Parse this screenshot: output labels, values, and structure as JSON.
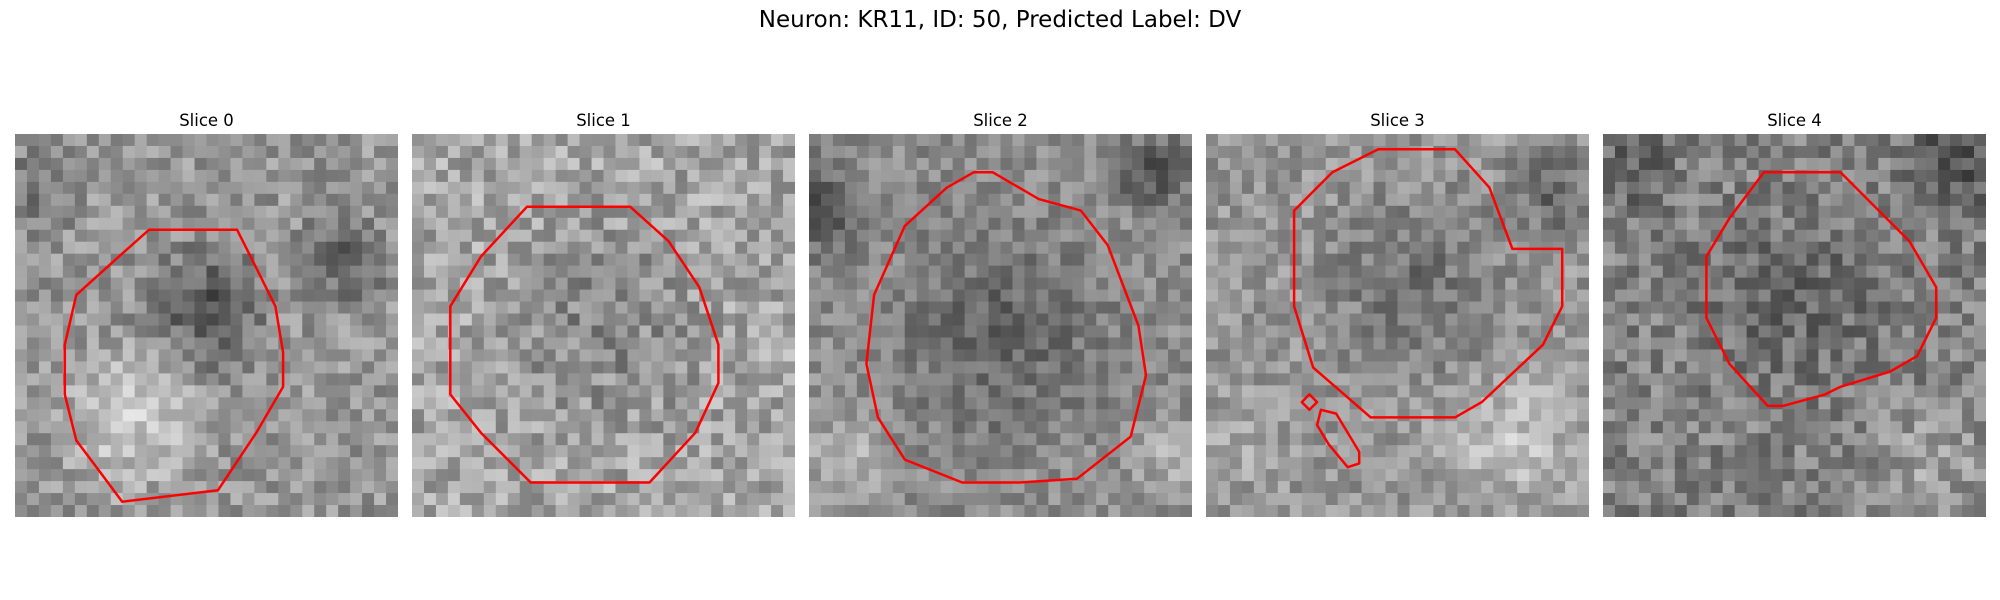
{
  "figure": {
    "title": "Neuron: KR11, ID: 50, Predicted Label: DV"
  },
  "contour_color": "#ff0000",
  "panels": [
    {
      "title": "Slice 0",
      "contour_count": 1
    },
    {
      "title": "Slice 1",
      "contour_count": 1
    },
    {
      "title": "Slice 2",
      "contour_count": 1
    },
    {
      "title": "Slice 3",
      "contour_count": 3
    },
    {
      "title": "Slice 4",
      "contour_count": 1
    }
  ]
}
